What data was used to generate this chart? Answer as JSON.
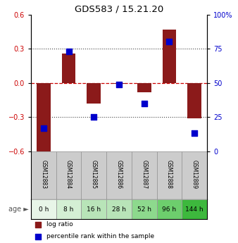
{
  "title": "GDS583 / 15.21.20",
  "samples": [
    "GSM12883",
    "GSM12884",
    "GSM12885",
    "GSM12886",
    "GSM12887",
    "GSM12888",
    "GSM12889"
  ],
  "ages": [
    "0 h",
    "8 h",
    "16 h",
    "28 h",
    "52 h",
    "96 h",
    "144 h"
  ],
  "age_colors": [
    "#e8f5e8",
    "#d4efd4",
    "#b8e4b8",
    "#b8e4b8",
    "#8dd98d",
    "#6dce6d",
    "#3db83d"
  ],
  "log_ratio": [
    -0.62,
    0.26,
    -0.185,
    -0.01,
    -0.08,
    0.47,
    -0.31
  ],
  "percentile_rank": [
    17,
    73,
    25,
    49,
    35,
    80,
    13
  ],
  "bar_color": "#8b1a1a",
  "dot_color": "#0000cc",
  "ylim_left": [
    -0.6,
    0.6
  ],
  "ylim_right": [
    0,
    100
  ],
  "yticks_left": [
    -0.6,
    -0.3,
    0.0,
    0.3,
    0.6
  ],
  "yticks_right": [
    0,
    25,
    50,
    75,
    100
  ],
  "ytick_labels_right": [
    "0",
    "25",
    "50",
    "75",
    "100%"
  ],
  "left_tick_color": "#cc0000",
  "right_tick_color": "#0000cc",
  "bar_width": 0.55,
  "dot_size": 28
}
